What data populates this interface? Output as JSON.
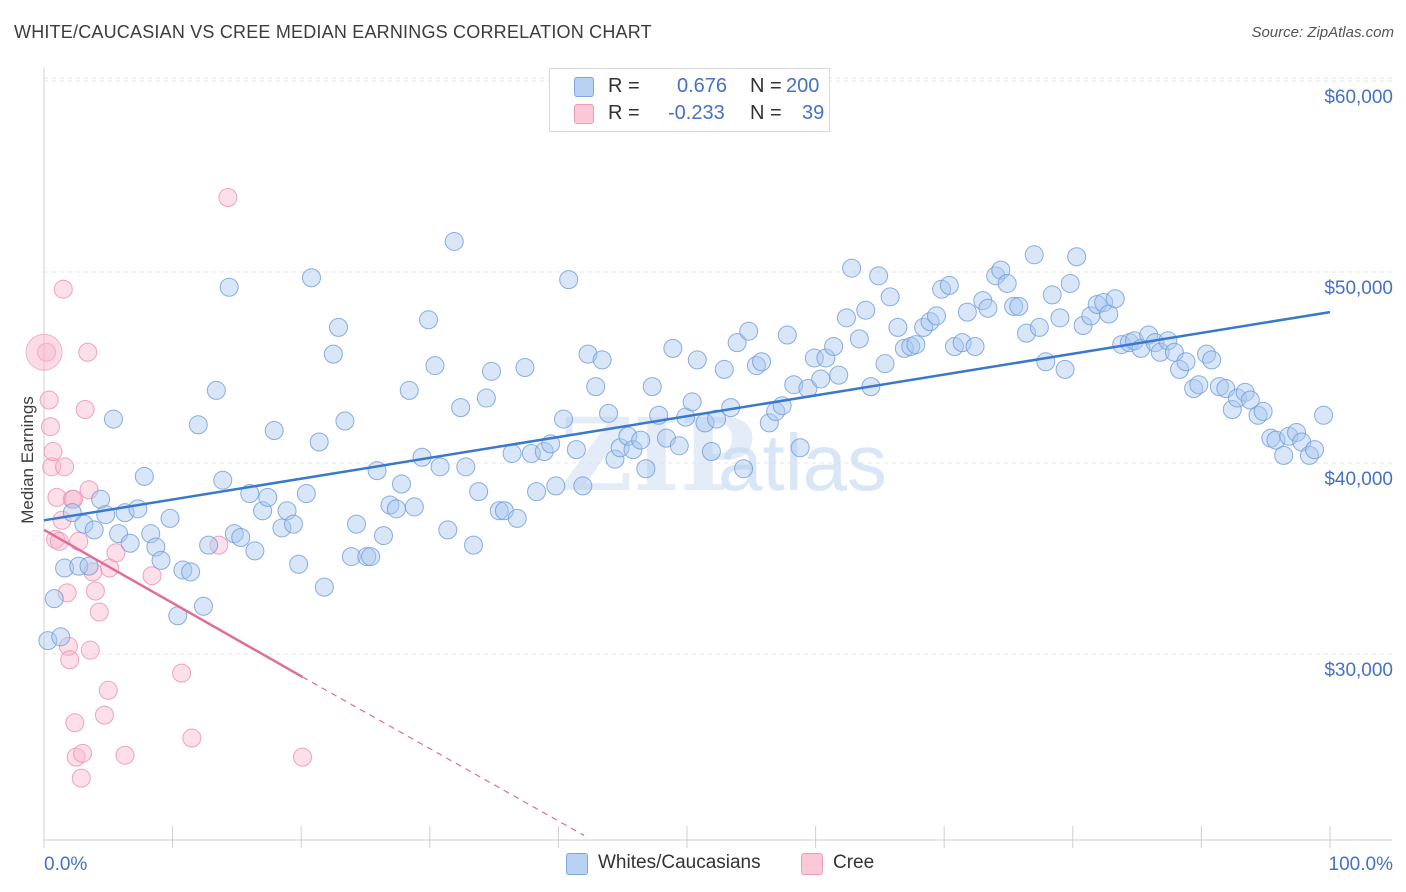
{
  "title": "WHITE/CAUCASIAN VS CREE MEDIAN EARNINGS CORRELATION CHART",
  "source": "Source: ZipAtlas.com",
  "legend": {
    "r_label": "R =",
    "n_label": "N =",
    "rows": [
      {
        "r": "0.676",
        "n": "200"
      },
      {
        "r": "-0.233",
        "n": "39"
      }
    ]
  },
  "chart_data": {
    "type": "scatter",
    "title": "WHITE/CAUCASIAN VS CREE MEDIAN EARNINGS CORRELATION CHART",
    "xlabel": "",
    "ylabel": "Median Earnings",
    "xlim": [
      0,
      100
    ],
    "ylim": [
      20500,
      61500
    ],
    "x_tick_labels": [
      "0.0%",
      "100.0%"
    ],
    "y_ticks": [
      30000,
      40000,
      50000,
      60000
    ],
    "y_tick_labels": [
      "$30,000",
      "$40,000",
      "$50,000",
      "$60,000"
    ],
    "grid": true,
    "watermark": "ZIPatlas",
    "series": [
      {
        "name": "Whites/Caucasians",
        "color": "#8fb4e8",
        "line_color": "#3a78d0",
        "trend": {
          "x": [
            0,
            100
          ],
          "y": [
            37000,
            47900
          ]
        },
        "points": [
          [
            0.3,
            30.7
          ],
          [
            0.8,
            32.9
          ],
          [
            1.3,
            30.9
          ],
          [
            1.6,
            34.5
          ],
          [
            2.2,
            37.4
          ],
          [
            2.7,
            34.6
          ],
          [
            3.1,
            36.8
          ],
          [
            3.5,
            34.6
          ],
          [
            3.9,
            36.5
          ],
          [
            4.4,
            38.1
          ],
          [
            4.8,
            37.3
          ],
          [
            5.4,
            42.3
          ],
          [
            5.8,
            36.3
          ],
          [
            6.3,
            37.4
          ],
          [
            6.7,
            35.8
          ],
          [
            7.3,
            37.6
          ],
          [
            7.8,
            39.3
          ],
          [
            8.3,
            36.3
          ],
          [
            8.7,
            35.6
          ],
          [
            9.1,
            34.9
          ],
          [
            9.8,
            37.1
          ],
          [
            10.4,
            32.0
          ],
          [
            10.8,
            34.4
          ],
          [
            11.4,
            34.3
          ],
          [
            12.0,
            42.0
          ],
          [
            12.4,
            32.5
          ],
          [
            12.8,
            35.7
          ],
          [
            13.4,
            43.8
          ],
          [
            13.9,
            39.1
          ],
          [
            14.4,
            49.2
          ],
          [
            14.8,
            36.3
          ],
          [
            15.3,
            36.1
          ],
          [
            16.0,
            38.4
          ],
          [
            16.4,
            35.4
          ],
          [
            17.0,
            37.5
          ],
          [
            17.4,
            38.2
          ],
          [
            17.9,
            41.7
          ],
          [
            18.5,
            36.6
          ],
          [
            18.9,
            37.5
          ],
          [
            19.4,
            36.8
          ],
          [
            19.8,
            34.7
          ],
          [
            20.4,
            38.4
          ],
          [
            20.8,
            49.7
          ],
          [
            21.4,
            41.1
          ],
          [
            21.8,
            33.5
          ],
          [
            22.5,
            45.7
          ],
          [
            22.9,
            47.1
          ],
          [
            23.4,
            42.2
          ],
          [
            23.9,
            35.1
          ],
          [
            24.3,
            36.8
          ],
          [
            25.1,
            35.1
          ],
          [
            25.4,
            35.1
          ],
          [
            25.9,
            39.6
          ],
          [
            26.4,
            36.2
          ],
          [
            26.9,
            37.8
          ],
          [
            27.4,
            37.6
          ],
          [
            27.8,
            38.9
          ],
          [
            28.4,
            43.8
          ],
          [
            28.8,
            37.7
          ],
          [
            29.4,
            40.3
          ],
          [
            29.9,
            47.5
          ],
          [
            30.4,
            45.1
          ],
          [
            30.8,
            39.8
          ],
          [
            31.4,
            36.5
          ],
          [
            31.9,
            51.6
          ],
          [
            32.4,
            42.9
          ],
          [
            32.8,
            39.8
          ],
          [
            33.4,
            35.7
          ],
          [
            33.8,
            38.5
          ],
          [
            34.4,
            43.4
          ],
          [
            34.8,
            44.8
          ],
          [
            35.4,
            37.5
          ],
          [
            35.8,
            37.5
          ],
          [
            36.4,
            40.5
          ],
          [
            36.8,
            37.1
          ],
          [
            37.4,
            45.0
          ],
          [
            37.9,
            40.5
          ],
          [
            38.3,
            38.5
          ],
          [
            38.9,
            40.6
          ],
          [
            39.4,
            41.0
          ],
          [
            39.8,
            38.8
          ],
          [
            40.4,
            42.3
          ],
          [
            40.8,
            49.6
          ],
          [
            41.4,
            40.7
          ],
          [
            41.9,
            38.8
          ],
          [
            42.3,
            45.7
          ],
          [
            42.9,
            44.0
          ],
          [
            43.4,
            45.4
          ],
          [
            43.9,
            42.6
          ],
          [
            44.4,
            40.2
          ],
          [
            44.8,
            40.8
          ],
          [
            45.4,
            41.4
          ],
          [
            45.8,
            40.7
          ],
          [
            46.4,
            41.2
          ],
          [
            46.8,
            39.7
          ],
          [
            47.3,
            44.0
          ],
          [
            47.8,
            42.5
          ],
          [
            48.4,
            41.3
          ],
          [
            48.9,
            46.0
          ],
          [
            49.4,
            40.9
          ],
          [
            49.9,
            42.4
          ],
          [
            50.4,
            43.2
          ],
          [
            50.8,
            45.4
          ],
          [
            51.4,
            42.1
          ],
          [
            51.9,
            40.6
          ],
          [
            52.3,
            42.3
          ],
          [
            52.9,
            44.9
          ],
          [
            53.4,
            42.9
          ],
          [
            53.9,
            46.3
          ],
          [
            54.4,
            39.7
          ],
          [
            54.8,
            46.9
          ],
          [
            55.4,
            45.1
          ],
          [
            55.8,
            45.3
          ],
          [
            56.4,
            42.1
          ],
          [
            56.9,
            42.7
          ],
          [
            57.4,
            43.0
          ],
          [
            57.8,
            46.7
          ],
          [
            58.3,
            44.1
          ],
          [
            58.8,
            40.8
          ],
          [
            59.4,
            43.9
          ],
          [
            59.9,
            45.5
          ],
          [
            60.4,
            44.4
          ],
          [
            60.8,
            45.5
          ],
          [
            61.4,
            46.1
          ],
          [
            61.8,
            44.6
          ],
          [
            62.4,
            47.6
          ],
          [
            62.8,
            50.2
          ],
          [
            63.4,
            46.5
          ],
          [
            63.9,
            48.0
          ],
          [
            64.3,
            44.0
          ],
          [
            64.9,
            49.8
          ],
          [
            65.4,
            45.2
          ],
          [
            65.8,
            48.7
          ],
          [
            66.4,
            47.1
          ],
          [
            66.9,
            46.0
          ],
          [
            67.4,
            46.1
          ],
          [
            67.8,
            46.2
          ],
          [
            68.4,
            47.1
          ],
          [
            68.9,
            47.4
          ],
          [
            69.4,
            47.7
          ],
          [
            69.8,
            49.1
          ],
          [
            70.4,
            49.3
          ],
          [
            70.8,
            46.1
          ],
          [
            71.4,
            46.3
          ],
          [
            71.8,
            47.9
          ],
          [
            72.4,
            46.1
          ],
          [
            73.0,
            48.5
          ],
          [
            73.4,
            48.1
          ],
          [
            74.0,
            49.8
          ],
          [
            74.4,
            50.1
          ],
          [
            74.9,
            49.4
          ],
          [
            75.4,
            48.2
          ],
          [
            75.8,
            48.2
          ],
          [
            76.4,
            46.8
          ],
          [
            77.0,
            50.9
          ],
          [
            77.4,
            47.1
          ],
          [
            77.9,
            45.3
          ],
          [
            78.4,
            48.8
          ],
          [
            79.0,
            47.6
          ],
          [
            79.4,
            44.9
          ],
          [
            79.8,
            49.4
          ],
          [
            80.3,
            50.8
          ],
          [
            80.8,
            47.2
          ],
          [
            81.4,
            47.7
          ],
          [
            81.9,
            48.3
          ],
          [
            82.4,
            48.4
          ],
          [
            82.8,
            47.8
          ],
          [
            83.3,
            48.6
          ],
          [
            83.8,
            46.2
          ],
          [
            84.4,
            46.3
          ],
          [
            84.8,
            46.4
          ],
          [
            85.3,
            46.0
          ],
          [
            85.9,
            46.7
          ],
          [
            86.4,
            46.3
          ],
          [
            86.8,
            45.8
          ],
          [
            87.4,
            46.4
          ],
          [
            87.9,
            45.8
          ],
          [
            88.3,
            44.9
          ],
          [
            88.8,
            45.3
          ],
          [
            89.4,
            43.9
          ],
          [
            89.8,
            44.1
          ],
          [
            90.4,
            45.7
          ],
          [
            90.8,
            45.4
          ],
          [
            91.4,
            44.0
          ],
          [
            91.9,
            43.9
          ],
          [
            92.4,
            42.8
          ],
          [
            92.8,
            43.4
          ],
          [
            93.4,
            43.7
          ],
          [
            93.8,
            43.3
          ],
          [
            94.4,
            42.5
          ],
          [
            94.8,
            42.7
          ],
          [
            95.4,
            41.3
          ],
          [
            95.8,
            41.2
          ],
          [
            96.4,
            40.4
          ],
          [
            96.8,
            41.4
          ],
          [
            97.4,
            41.6
          ],
          [
            97.8,
            41.1
          ],
          [
            98.4,
            40.4
          ],
          [
            98.8,
            40.7
          ],
          [
            99.5,
            42.5
          ]
        ]
      },
      {
        "name": "Cree",
        "color": "#f4a7c0",
        "line_color": "#e06e96",
        "trend": {
          "x": [
            0,
            20.1
          ],
          "y": [
            36500,
            28800
          ],
          "dashed_to": {
            "x": 42,
            "y": 20500
          }
        },
        "points": [
          [
            0.2,
            45.8
          ],
          [
            0.4,
            43.3
          ],
          [
            0.5,
            41.9
          ],
          [
            0.6,
            39.8
          ],
          [
            0.7,
            40.6
          ],
          [
            0.9,
            36.0
          ],
          [
            1.0,
            38.2
          ],
          [
            1.2,
            35.9
          ],
          [
            1.4,
            37.0
          ],
          [
            1.5,
            49.1
          ],
          [
            1.6,
            39.8
          ],
          [
            1.8,
            33.2
          ],
          [
            1.9,
            30.4
          ],
          [
            2.0,
            29.7
          ],
          [
            2.2,
            38.1
          ],
          [
            2.3,
            38.1
          ],
          [
            2.4,
            26.4
          ],
          [
            2.5,
            24.6
          ],
          [
            2.7,
            35.9
          ],
          [
            2.9,
            23.5
          ],
          [
            3.0,
            24.8
          ],
          [
            3.2,
            42.8
          ],
          [
            3.4,
            45.8
          ],
          [
            3.5,
            38.6
          ],
          [
            3.6,
            30.2
          ],
          [
            3.8,
            34.3
          ],
          [
            4.0,
            33.3
          ],
          [
            4.3,
            32.2
          ],
          [
            4.7,
            26.8
          ],
          [
            5.1,
            34.5
          ],
          [
            5.0,
            28.1
          ],
          [
            5.6,
            35.3
          ],
          [
            6.3,
            24.7
          ],
          [
            8.4,
            34.1
          ],
          [
            10.7,
            29.0
          ],
          [
            11.5,
            25.6
          ],
          [
            13.6,
            35.7
          ],
          [
            14.3,
            53.9
          ],
          [
            20.1,
            24.6
          ]
        ]
      }
    ]
  }
}
